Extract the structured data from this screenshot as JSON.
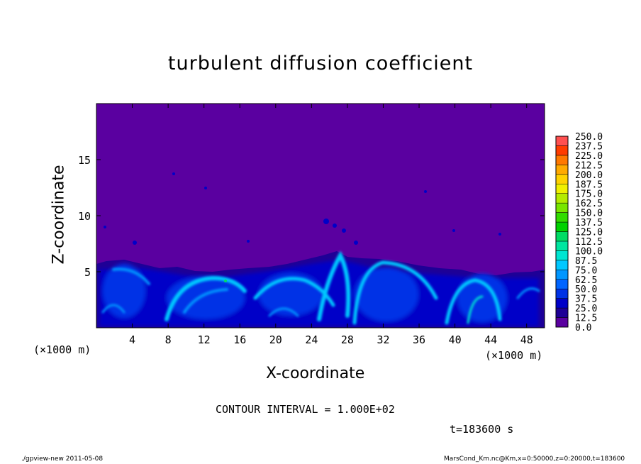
{
  "chart_data": {
    "type": "heatmap",
    "title": "turbulent diffusion coefficient",
    "xlabel": "X-coordinate",
    "ylabel": "Z-coordinate",
    "x_unit": "(×1000 m)",
    "y_unit": "(×1000 m)",
    "xlim": [
      0,
      50
    ],
    "ylim": [
      0,
      20
    ],
    "x_ticks": [
      4,
      8,
      12,
      16,
      20,
      24,
      28,
      32,
      36,
      40,
      44,
      48
    ],
    "y_ticks": [
      5,
      10,
      15
    ],
    "colorbar": {
      "levels": [
        "0.0",
        "12.5",
        "25.0",
        "37.5",
        "50.0",
        "62.5",
        "75.0",
        "87.5",
        "100.0",
        "112.5",
        "125.0",
        "137.5",
        "150.0",
        "162.5",
        "175.0",
        "187.5",
        "200.0",
        "212.5",
        "225.0",
        "237.5",
        "250.0"
      ],
      "colors": [
        "#5a00a0",
        "#1e0096",
        "#0000c8",
        "#0032e6",
        "#0064ff",
        "#0096ff",
        "#00c8ff",
        "#00e6d2",
        "#00e6a0",
        "#00dc64",
        "#00d200",
        "#32dc00",
        "#78e600",
        "#b4eb00",
        "#f0f000",
        "#ffd200",
        "#ffaa00",
        "#ff7800",
        "#ff3c00",
        "#ff5050",
        "#f08c8c"
      ]
    },
    "contour_interval": "CONTOUR INTERVAL = 1.000E+02",
    "time_label": "t=183600 s",
    "footer_left": "./gpview-new   2011-05-08",
    "footer_right": "MarsCond_Km.nc@Km,x=0:50000,z=0:20000,t=183600"
  }
}
